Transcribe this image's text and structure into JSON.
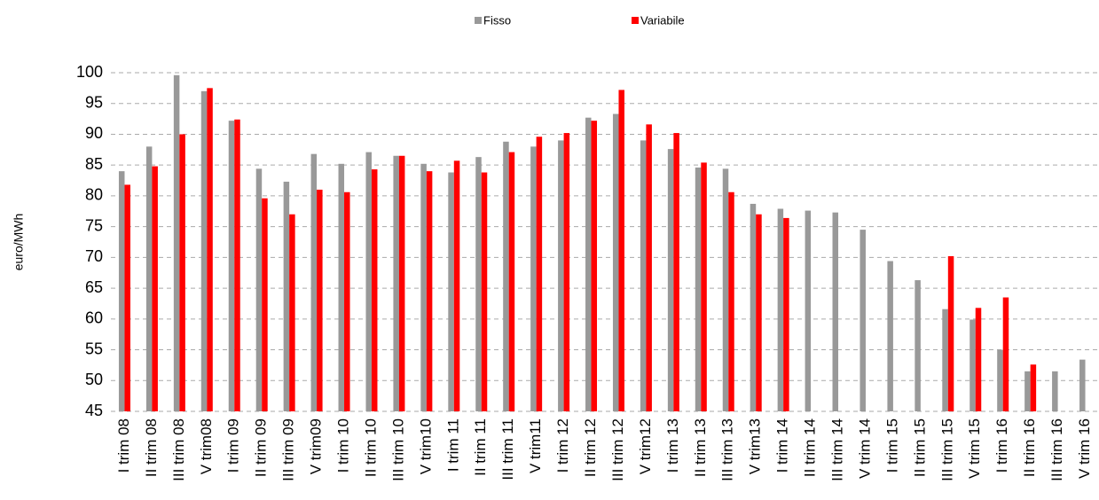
{
  "chart_data": {
    "type": "bar",
    "y_label": "euro/MWh",
    "categories": [
      "I trim 08",
      "II trim 08",
      "III trim 08",
      "V trim08",
      "I trim 09",
      "II trim 09",
      "III trim 09",
      "V trim09",
      "I trim 10",
      "II trim 10",
      "III trim 10",
      "V trim10",
      "I trim 11",
      "II trim 11",
      "III trim 11",
      "V trim11",
      "I trim 12",
      "II trim 12",
      "III trim 12",
      "V trim12",
      "I trim 13",
      "II trim 13",
      "III trim 13",
      "V trim13",
      "I trim 14",
      "II trim 14",
      "III trim 14",
      "V trim 14",
      "I trim 15",
      "II trim 15",
      "III trim 15",
      "V trim 15",
      "I trim 16",
      "II trim 16",
      "III trim 16",
      "V trim 16"
    ],
    "series": [
      {
        "name": "Fisso",
        "color": "#999999",
        "values": [
          84,
          88,
          99.6,
          97,
          92.2,
          84.4,
          82.3,
          86.8,
          85.2,
          87.1,
          86.5,
          85.2,
          83.8,
          86.3,
          88.8,
          88,
          89,
          92.7,
          93.3,
          89,
          87.6,
          84.6,
          84.4,
          78.7,
          77.9,
          77.6,
          77.3,
          74.5,
          69.4,
          66.3,
          61.6,
          59.9,
          55,
          51.5,
          51.5,
          53.4
        ]
      },
      {
        "name": "Variabile",
        "color": "#ff0000",
        "values": [
          81.8,
          84.8,
          90,
          97.5,
          92.4,
          79.6,
          77,
          81,
          80.6,
          84.3,
          86.5,
          84,
          85.7,
          83.8,
          87.1,
          89.6,
          90.2,
          92.2,
          97.2,
          91.6,
          90.2,
          85.4,
          80.6,
          77,
          76.4,
          null,
          null,
          null,
          null,
          null,
          70.2,
          61.8,
          63.5,
          52.6,
          null,
          null
        ]
      }
    ],
    "ylim": [
      45,
      100
    ],
    "yticks": [
      45,
      50,
      55,
      60,
      65,
      70,
      75,
      80,
      85,
      90,
      95,
      100
    ],
    "grid": true
  }
}
